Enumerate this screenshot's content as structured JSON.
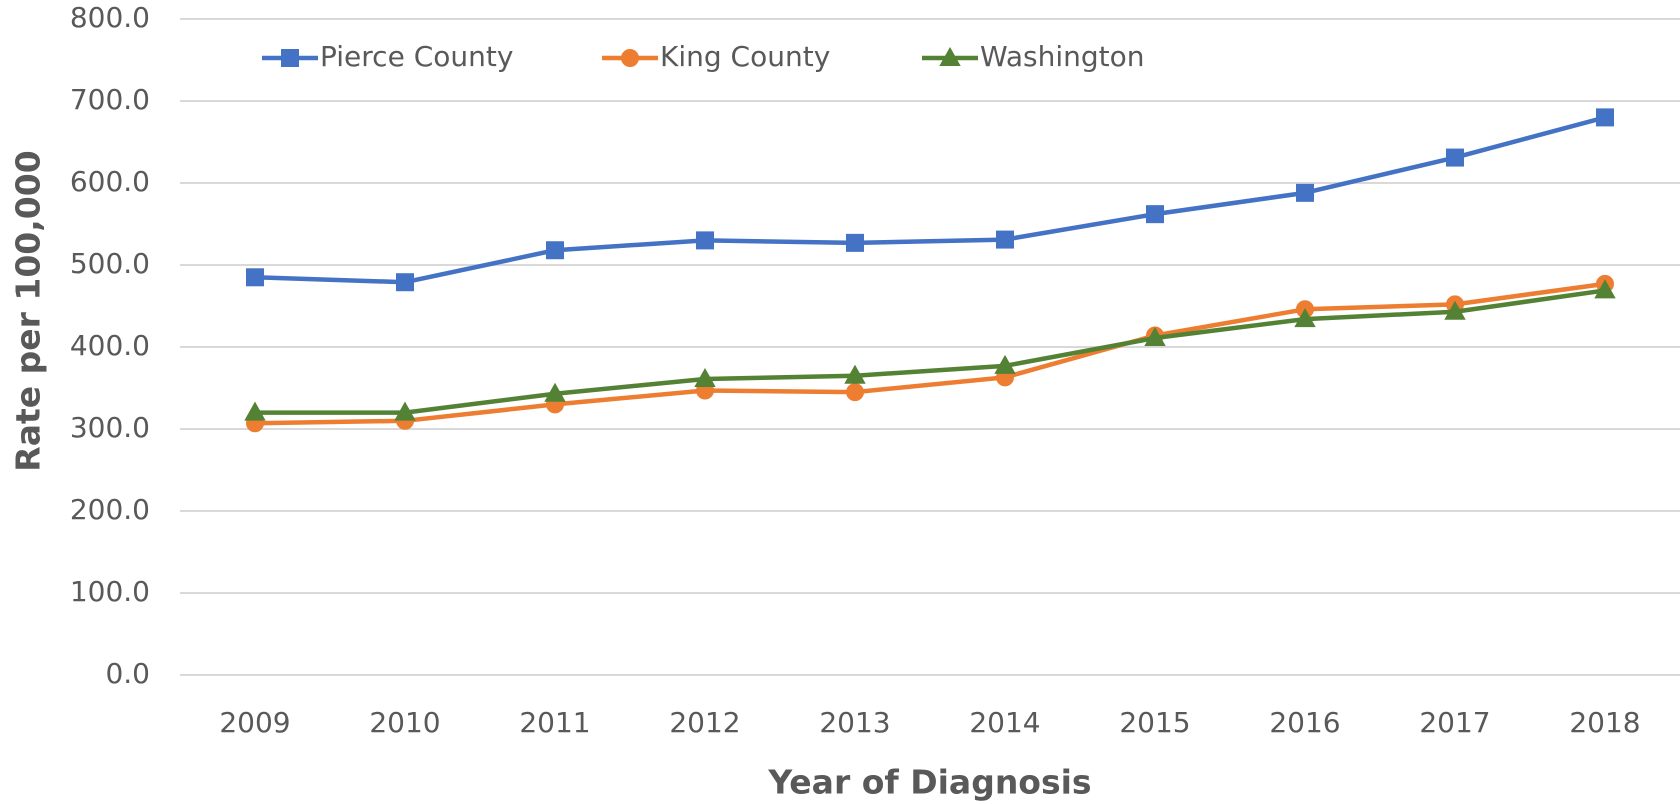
{
  "chart_data": {
    "type": "line",
    "x_label": "Year of Diagnosis",
    "y_label": "Rate per 100,000",
    "categories": [
      "2009",
      "2010",
      "2011",
      "2012",
      "2013",
      "2014",
      "2015",
      "2016",
      "2017",
      "2018"
    ],
    "series": [
      {
        "name": "Pierce County",
        "color": "#4472c4",
        "marker": "square",
        "values": [
          485,
          479,
          518,
          530,
          527,
          531,
          562,
          588,
          631,
          680
        ]
      },
      {
        "name": "King County",
        "color": "#ed7d31",
        "marker": "circle",
        "values": [
          307,
          310,
          330,
          347,
          345,
          363,
          414,
          446,
          452,
          477
        ]
      },
      {
        "name": "Washington",
        "color": "#548235",
        "marker": "triangle",
        "values": [
          320,
          320,
          343,
          361,
          365,
          377,
          411,
          434,
          443,
          469
        ]
      }
    ],
    "ylim": [
      0,
      800
    ],
    "yticks": [
      {
        "value": 0,
        "label": "0.0"
      },
      {
        "value": 100,
        "label": "100.0"
      },
      {
        "value": 200,
        "label": "200.0"
      },
      {
        "value": 300,
        "label": "300.0"
      },
      {
        "value": 400,
        "label": "400.0"
      },
      {
        "value": 500,
        "label": "500.0"
      },
      {
        "value": 600,
        "label": "600.0"
      },
      {
        "value": 700,
        "label": "700.0"
      },
      {
        "value": 800,
        "label": "800.0"
      }
    ],
    "grid": true,
    "legend": "top-left"
  }
}
